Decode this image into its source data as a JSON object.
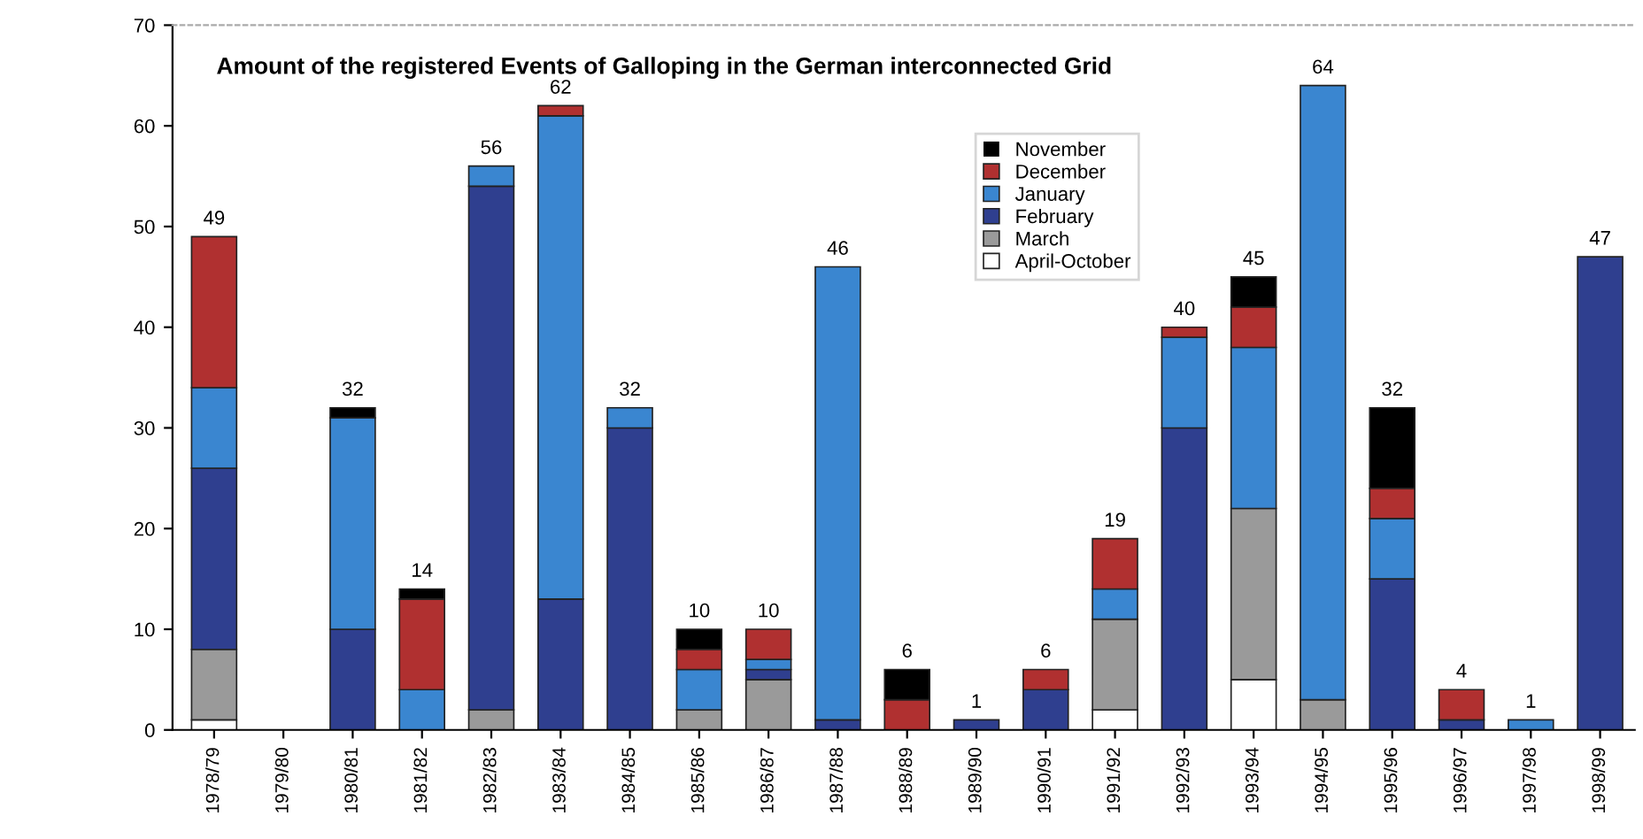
{
  "chart_data": {
    "type": "bar",
    "title": "Amount of the registered Events of Galloping in the German interconnected Grid",
    "categories": [
      "1978/79",
      "1979/80",
      "1980/81",
      "1981/82",
      "1982/83",
      "1983/84",
      "1984/85",
      "1985/86",
      "1986/87",
      "1987/88",
      "1988/89",
      "1989/90",
      "1990/91",
      "1991/92",
      "1992/93",
      "1993/94",
      "1994/95",
      "1995/96",
      "1996/97",
      "1997/98",
      "1998/99"
    ],
    "stacked": true,
    "series": [
      {
        "name": "April-October",
        "color": "#ffffff",
        "values": [
          1,
          0,
          0,
          0,
          0,
          0,
          0,
          0,
          0,
          0,
          0,
          0,
          0,
          2,
          0,
          5,
          0,
          0,
          0,
          0,
          0
        ]
      },
      {
        "name": "March",
        "color": "#9a9a9a",
        "values": [
          7,
          0,
          0,
          0,
          2,
          0,
          0,
          2,
          5,
          0,
          0,
          0,
          0,
          9,
          0,
          17,
          3,
          0,
          0,
          0,
          0
        ]
      },
      {
        "name": "February",
        "color": "#2f3f8f",
        "values": [
          18,
          0,
          10,
          0,
          52,
          13,
          30,
          0,
          1,
          1,
          0,
          1,
          4,
          0,
          30,
          0,
          0,
          15,
          1,
          0,
          47
        ]
      },
      {
        "name": "January",
        "color": "#3a86d0",
        "values": [
          8,
          0,
          21,
          4,
          2,
          48,
          2,
          4,
          1,
          45,
          0,
          0,
          0,
          3,
          9,
          16,
          61,
          6,
          0,
          1,
          0
        ]
      },
      {
        "name": "December",
        "color": "#b03030",
        "values": [
          15,
          0,
          0,
          9,
          0,
          1,
          0,
          2,
          3,
          0,
          3,
          0,
          2,
          5,
          1,
          4,
          0,
          3,
          3,
          0,
          0
        ]
      },
      {
        "name": "November",
        "color": "#000000",
        "values": [
          0,
          0,
          1,
          1,
          0,
          0,
          0,
          2,
          0,
          0,
          3,
          0,
          0,
          0,
          0,
          3,
          0,
          8,
          0,
          0,
          0
        ]
      }
    ],
    "totals": [
      "49",
      null,
      "32",
      "14",
      "56",
      "62",
      "32",
      "10",
      "10",
      "46",
      "6",
      "1",
      "6",
      "19",
      "40",
      "45",
      "64",
      "32",
      "4",
      "1",
      "47"
    ],
    "ylim": [
      0,
      70
    ],
    "yticks": [
      0,
      10,
      20,
      30,
      40,
      50,
      60,
      70
    ],
    "legend": "top"
  }
}
